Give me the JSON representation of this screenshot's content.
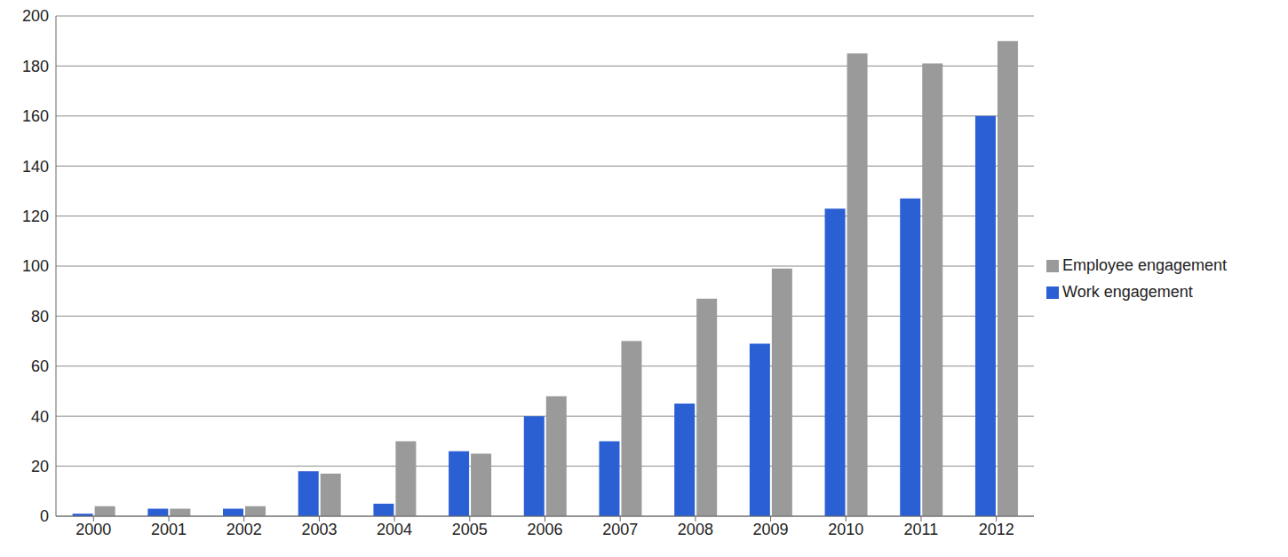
{
  "chart_data": {
    "type": "bar",
    "categories": [
      "2000",
      "2001",
      "2002",
      "2003",
      "2004",
      "2005",
      "2006",
      "2007",
      "2008",
      "2009",
      "2010",
      "2011",
      "2012"
    ],
    "series": [
      {
        "name": "Work engagement",
        "color": "#2b5fd4",
        "values": [
          1,
          3,
          3,
          18,
          5,
          26,
          40,
          30,
          45,
          69,
          123,
          127,
          160
        ]
      },
      {
        "name": "Employee engagement",
        "color": "#9a9a9a",
        "values": [
          4,
          3,
          4,
          17,
          30,
          25,
          48,
          70,
          87,
          99,
          185,
          181,
          190
        ]
      }
    ],
    "ylim": [
      0,
      200
    ],
    "yticks": [
      0,
      20,
      40,
      60,
      80,
      100,
      120,
      140,
      160,
      180,
      200
    ],
    "grid": true,
    "legend": "right"
  }
}
